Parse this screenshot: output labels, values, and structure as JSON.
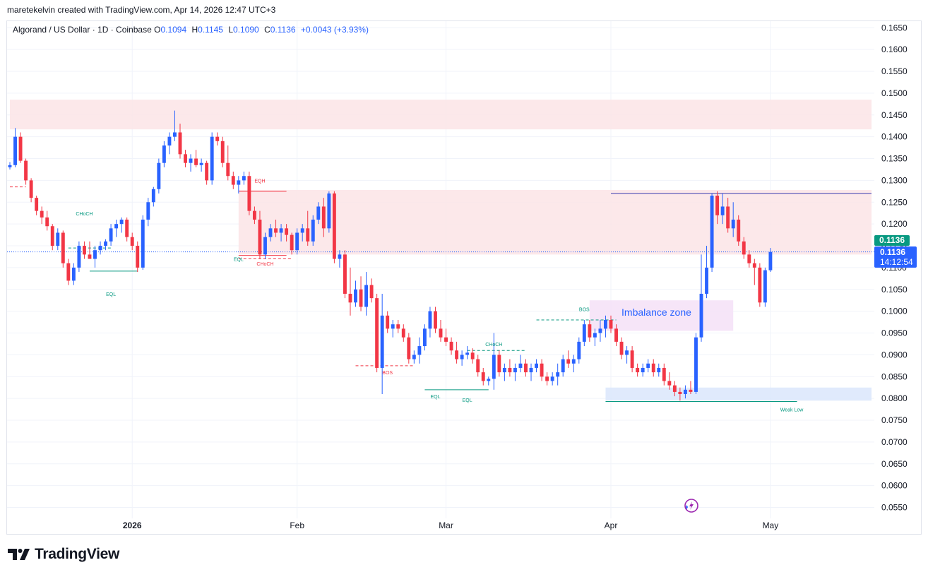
{
  "header": {
    "attribution": "maretekelvin created with TradingView.com, Apr 14, 2026 12:47 UTC+3"
  },
  "legend": {
    "symbol": "Algorand / US Dollar · 1D · Coinbase",
    "open_label": "O",
    "open": "0.1094",
    "high_label": "H",
    "high": "0.1145",
    "low_label": "L",
    "low": "0.1090",
    "close_label": "C",
    "close": "0.1136",
    "change": "+0.0043 (+3.93%)"
  },
  "price_tags": {
    "last_price": "0.1136",
    "mark_price": "0.1136",
    "countdown": "14:12:54"
  },
  "brand": {
    "name": "TradingView"
  },
  "colors": {
    "up": "#2962ff",
    "down": "#f23645",
    "zone_red": "#fce4e6",
    "zone_blue": "#dbe6fb",
    "zone_purple": "#f4e0f7",
    "smc_green": "#089981",
    "smc_red": "#f23645",
    "line_navy": "#3a3ab0"
  },
  "chart_data": {
    "type": "candlestick",
    "y_ticks": [
      "0.1650",
      "0.1600",
      "0.1550",
      "0.1500",
      "0.1450",
      "0.1400",
      "0.1350",
      "0.1300",
      "0.1250",
      "0.1200",
      "0.1150",
      "0.1100",
      "0.1050",
      "0.1000",
      "0.0950",
      "0.0900",
      "0.0850",
      "0.0800",
      "0.0750",
      "0.0700",
      "0.0650",
      "0.0600",
      "0.0550"
    ],
    "ylim": [
      0.0525,
      0.1665
    ],
    "x_labels": [
      {
        "label": "2026",
        "bar": 23
      },
      {
        "label": "Feb",
        "bar": 54
      },
      {
        "label": "Mar",
        "bar": 82
      },
      {
        "label": "Apr",
        "bar": 113
      },
      {
        "label": "May",
        "bar": 143
      }
    ],
    "bar_window": [
      0,
      162
    ],
    "ohlc": [
      [
        0.133,
        0.1342,
        0.1325,
        0.1335
      ],
      [
        0.1335,
        0.142,
        0.133,
        0.14
      ],
      [
        0.14,
        0.141,
        0.134,
        0.1345
      ],
      [
        0.1345,
        0.135,
        0.129,
        0.13
      ],
      [
        0.13,
        0.1305,
        0.125,
        0.126
      ],
      [
        0.126,
        0.1265,
        0.122,
        0.123
      ],
      [
        0.123,
        0.124,
        0.12,
        0.1215
      ],
      [
        0.1215,
        0.123,
        0.1185,
        0.1195
      ],
      [
        0.1195,
        0.12,
        0.114,
        0.115
      ],
      [
        0.115,
        0.119,
        0.114,
        0.118
      ],
      [
        0.118,
        0.1185,
        0.11,
        0.111
      ],
      [
        0.111,
        0.112,
        0.106,
        0.107
      ],
      [
        0.107,
        0.111,
        0.106,
        0.11
      ],
      [
        0.11,
        0.116,
        0.109,
        0.115
      ],
      [
        0.115,
        0.116,
        0.112,
        0.113
      ],
      [
        0.113,
        0.116,
        0.112,
        0.112
      ],
      [
        0.112,
        0.115,
        0.11,
        0.114
      ],
      [
        0.114,
        0.116,
        0.113,
        0.115
      ],
      [
        0.115,
        0.1165,
        0.114,
        0.116
      ],
      [
        0.116,
        0.12,
        0.115,
        0.119
      ],
      [
        0.119,
        0.121,
        0.117,
        0.12
      ],
      [
        0.12,
        0.1215,
        0.118,
        0.121
      ],
      [
        0.121,
        0.1215,
        0.116,
        0.117
      ],
      [
        0.117,
        0.118,
        0.114,
        0.115
      ],
      [
        0.115,
        0.116,
        0.109,
        0.11
      ],
      [
        0.11,
        0.122,
        0.1095,
        0.121
      ],
      [
        0.121,
        0.126,
        0.1195,
        0.125
      ],
      [
        0.125,
        0.1285,
        0.124,
        0.128
      ],
      [
        0.128,
        0.135,
        0.127,
        0.134
      ],
      [
        0.134,
        0.139,
        0.133,
        0.138
      ],
      [
        0.138,
        0.141,
        0.136,
        0.14
      ],
      [
        0.14,
        0.146,
        0.139,
        0.141
      ],
      [
        0.141,
        0.143,
        0.135,
        0.136
      ],
      [
        0.136,
        0.137,
        0.133,
        0.134
      ],
      [
        0.134,
        0.136,
        0.132,
        0.135
      ],
      [
        0.135,
        0.137,
        0.133,
        0.1335
      ],
      [
        0.1335,
        0.135,
        0.132,
        0.134
      ],
      [
        0.134,
        0.1345,
        0.129,
        0.13
      ],
      [
        0.13,
        0.141,
        0.129,
        0.14
      ],
      [
        0.14,
        0.141,
        0.138,
        0.139
      ],
      [
        0.139,
        0.14,
        0.133,
        0.134
      ],
      [
        0.134,
        0.138,
        0.13,
        0.131
      ],
      [
        0.131,
        0.132,
        0.128,
        0.129
      ],
      [
        0.129,
        0.131,
        0.127,
        0.13
      ],
      [
        0.13,
        0.132,
        0.129,
        0.131
      ],
      [
        0.131,
        0.132,
        0.122,
        0.123
      ],
      [
        0.123,
        0.124,
        0.12,
        0.121
      ],
      [
        0.121,
        0.123,
        0.112,
        0.113
      ],
      [
        0.113,
        0.118,
        0.112,
        0.117
      ],
      [
        0.117,
        0.12,
        0.116,
        0.119
      ],
      [
        0.119,
        0.121,
        0.117,
        0.118
      ],
      [
        0.118,
        0.12,
        0.116,
        0.119
      ],
      [
        0.119,
        0.12,
        0.116,
        0.1175
      ],
      [
        0.1175,
        0.118,
        0.113,
        0.114
      ],
      [
        0.114,
        0.119,
        0.113,
        0.118
      ],
      [
        0.118,
        0.12,
        0.116,
        0.119
      ],
      [
        0.119,
        0.123,
        0.115,
        0.116
      ],
      [
        0.116,
        0.122,
        0.115,
        0.121
      ],
      [
        0.121,
        0.125,
        0.12,
        0.124
      ],
      [
        0.124,
        0.126,
        0.117,
        0.119
      ],
      [
        0.119,
        0.1275,
        0.118,
        0.127
      ],
      [
        0.127,
        0.1275,
        0.111,
        0.112
      ],
      [
        0.112,
        0.114,
        0.11,
        0.113
      ],
      [
        0.113,
        0.114,
        0.103,
        0.104
      ],
      [
        0.104,
        0.11,
        0.099,
        0.102
      ],
      [
        0.102,
        0.107,
        0.101,
        0.105
      ],
      [
        0.105,
        0.108,
        0.1,
        0.101
      ],
      [
        0.101,
        0.109,
        0.099,
        0.106
      ],
      [
        0.106,
        0.1075,
        0.102,
        0.103
      ],
      [
        0.103,
        0.104,
        0.086,
        0.087
      ],
      [
        0.087,
        0.104,
        0.081,
        0.099
      ],
      [
        0.099,
        0.1,
        0.095,
        0.096
      ],
      [
        0.096,
        0.098,
        0.094,
        0.097
      ],
      [
        0.097,
        0.098,
        0.095,
        0.096
      ],
      [
        0.096,
        0.097,
        0.093,
        0.094
      ],
      [
        0.094,
        0.095,
        0.088,
        0.089
      ],
      [
        0.089,
        0.091,
        0.088,
        0.09
      ],
      [
        0.09,
        0.094,
        0.088,
        0.092
      ],
      [
        0.092,
        0.097,
        0.091,
        0.096
      ],
      [
        0.096,
        0.101,
        0.094,
        0.1
      ],
      [
        0.1,
        0.101,
        0.095,
        0.096
      ],
      [
        0.096,
        0.098,
        0.093,
        0.094
      ],
      [
        0.094,
        0.096,
        0.092,
        0.093
      ],
      [
        0.093,
        0.094,
        0.09,
        0.091
      ],
      [
        0.091,
        0.093,
        0.088,
        0.089
      ],
      [
        0.089,
        0.091,
        0.0875,
        0.09
      ],
      [
        0.09,
        0.092,
        0.089,
        0.0905
      ],
      [
        0.0905,
        0.0915,
        0.088,
        0.089
      ],
      [
        0.089,
        0.09,
        0.085,
        0.086
      ],
      [
        0.086,
        0.087,
        0.083,
        0.084
      ],
      [
        0.084,
        0.085,
        0.083,
        0.0845
      ],
      [
        0.0845,
        0.095,
        0.082,
        0.09
      ],
      [
        0.09,
        0.091,
        0.085,
        0.086
      ],
      [
        0.086,
        0.088,
        0.084,
        0.087
      ],
      [
        0.087,
        0.089,
        0.085,
        0.086
      ],
      [
        0.086,
        0.088,
        0.084,
        0.087
      ],
      [
        0.087,
        0.09,
        0.086,
        0.088
      ],
      [
        0.088,
        0.089,
        0.085,
        0.086
      ],
      [
        0.086,
        0.088,
        0.084,
        0.087
      ],
      [
        0.087,
        0.089,
        0.086,
        0.088
      ],
      [
        0.088,
        0.089,
        0.084,
        0.085
      ],
      [
        0.085,
        0.086,
        0.083,
        0.084
      ],
      [
        0.084,
        0.086,
        0.083,
        0.085
      ],
      [
        0.085,
        0.088,
        0.083,
        0.086
      ],
      [
        0.086,
        0.09,
        0.085,
        0.089
      ],
      [
        0.089,
        0.091,
        0.087,
        0.088
      ],
      [
        0.088,
        0.09,
        0.086,
        0.089
      ],
      [
        0.089,
        0.094,
        0.088,
        0.093
      ],
      [
        0.093,
        0.098,
        0.092,
        0.097
      ],
      [
        0.097,
        0.098,
        0.093,
        0.094
      ],
      [
        0.094,
        0.096,
        0.092,
        0.095
      ],
      [
        0.095,
        0.098,
        0.093,
        0.096
      ],
      [
        0.096,
        0.099,
        0.094,
        0.098
      ],
      [
        0.098,
        0.099,
        0.095,
        0.096
      ],
      [
        0.096,
        0.097,
        0.092,
        0.093
      ],
      [
        0.093,
        0.094,
        0.089,
        0.09
      ],
      [
        0.09,
        0.092,
        0.088,
        0.091
      ],
      [
        0.091,
        0.092,
        0.086,
        0.087
      ],
      [
        0.087,
        0.088,
        0.085,
        0.086
      ],
      [
        0.086,
        0.088,
        0.085,
        0.087
      ],
      [
        0.087,
        0.089,
        0.086,
        0.088
      ],
      [
        0.088,
        0.089,
        0.085,
        0.086
      ],
      [
        0.086,
        0.088,
        0.085,
        0.087
      ],
      [
        0.087,
        0.088,
        0.083,
        0.084
      ],
      [
        0.084,
        0.086,
        0.082,
        0.083
      ],
      [
        0.083,
        0.084,
        0.0805,
        0.0815
      ],
      [
        0.0815,
        0.0825,
        0.0795,
        0.081
      ],
      [
        0.081,
        0.083,
        0.08,
        0.082
      ],
      [
        0.082,
        0.084,
        0.081,
        0.0815
      ],
      [
        0.0815,
        0.095,
        0.081,
        0.094
      ],
      [
        0.094,
        0.113,
        0.093,
        0.104
      ],
      [
        0.104,
        0.115,
        0.103,
        0.11
      ],
      [
        0.11,
        0.127,
        0.109,
        0.1265
      ],
      [
        0.1265,
        0.1275,
        0.12,
        0.122
      ],
      [
        0.122,
        0.127,
        0.12,
        0.124
      ],
      [
        0.124,
        0.126,
        0.118,
        0.119
      ],
      [
        0.119,
        0.125,
        0.117,
        0.121
      ],
      [
        0.121,
        0.122,
        0.115,
        0.116
      ],
      [
        0.116,
        0.117,
        0.112,
        0.113
      ],
      [
        0.113,
        0.114,
        0.11,
        0.111
      ],
      [
        0.111,
        0.112,
        0.106,
        0.11
      ],
      [
        0.11,
        0.111,
        0.101,
        0.102
      ],
      [
        0.102,
        0.11,
        0.101,
        0.1094
      ],
      [
        0.1094,
        0.1145,
        0.109,
        0.1136
      ]
    ],
    "zones": [
      {
        "name": "supply-zone-upper",
        "bar_start": 0,
        "bar_end": 162,
        "top": 0.1485,
        "bottom": 0.1417,
        "color": "zone_red"
      },
      {
        "name": "supply-zone-mid",
        "bar_start": 43,
        "bar_end": 162,
        "top": 0.1278,
        "bottom": 0.113,
        "color": "zone_red"
      },
      {
        "name": "imbalance-zone",
        "bar_start": 109,
        "bar_end": 136,
        "top": 0.1025,
        "bottom": 0.0955,
        "color": "zone_purple"
      },
      {
        "name": "demand-zone",
        "bar_start": 112,
        "bar_end": 162,
        "top": 0.0825,
        "bottom": 0.0795,
        "color": "zone_blue"
      }
    ],
    "annotations": [
      {
        "text": "CHoCH",
        "bar": 14,
        "price": 0.122,
        "color": "smc_green"
      },
      {
        "text": "EQL",
        "bar": 19,
        "price": 0.1035,
        "color": "smc_green"
      },
      {
        "text": "EQH",
        "bar": 47,
        "price": 0.1295,
        "color": "smc_red"
      },
      {
        "text": "EQL",
        "bar": 43,
        "price": 0.1115,
        "color": "smc_green"
      },
      {
        "text": "CHoCH",
        "bar": 48,
        "price": 0.1105,
        "color": "smc_red"
      },
      {
        "text": "BOS",
        "bar": 71,
        "price": 0.0855,
        "color": "smc_red"
      },
      {
        "text": "EQL",
        "bar": 80,
        "price": 0.08,
        "color": "smc_green"
      },
      {
        "text": "EQL",
        "bar": 86,
        "price": 0.0792,
        "color": "smc_green"
      },
      {
        "text": "CHoCH",
        "bar": 91,
        "price": 0.092,
        "color": "smc_green"
      },
      {
        "text": "BOS",
        "bar": 108,
        "price": 0.1,
        "color": "smc_green"
      },
      {
        "text": "Imbalance zone",
        "bar": 115,
        "price": 0.099,
        "color": "up"
      },
      {
        "text": "Weak Low",
        "bar": 147,
        "price": 0.077,
        "color": "smc_green"
      }
    ],
    "lines": [
      {
        "bar_start": 11,
        "bar_end": 19,
        "price": 0.1145,
        "color": "smc_green",
        "dash": true
      },
      {
        "bar_start": 15,
        "bar_end": 24,
        "price": 0.1092,
        "color": "smc_green",
        "dash": false
      },
      {
        "bar_start": 43,
        "bar_end": 52,
        "price": 0.1275,
        "color": "smc_red",
        "dash": false
      },
      {
        "bar_start": 43,
        "bar_end": 52,
        "price": 0.1128,
        "color": "smc_red",
        "dash": false
      },
      {
        "bar_start": 43,
        "bar_end": 53,
        "price": 0.112,
        "color": "smc_red",
        "dash": true
      },
      {
        "bar_start": 0,
        "bar_end": 3,
        "price": 0.1285,
        "color": "smc_red",
        "dash": true
      },
      {
        "bar_start": 65,
        "bar_end": 76,
        "price": 0.0875,
        "color": "smc_red",
        "dash": true
      },
      {
        "bar_start": 78,
        "bar_end": 90,
        "price": 0.082,
        "color": "smc_green",
        "dash": false
      },
      {
        "bar_start": 86,
        "bar_end": 97,
        "price": 0.091,
        "color": "smc_green",
        "dash": true
      },
      {
        "bar_start": 99,
        "bar_end": 114,
        "price": 0.098,
        "color": "smc_green",
        "dash": true
      },
      {
        "bar_start": 112,
        "bar_end": 148,
        "price": 0.0793,
        "color": "smc_green",
        "dash": false
      },
      {
        "bar_start": 113,
        "bar_end": 162,
        "price": 0.127,
        "color": "line_navy",
        "dash": false
      }
    ],
    "last_price_line": 0.1136
  }
}
